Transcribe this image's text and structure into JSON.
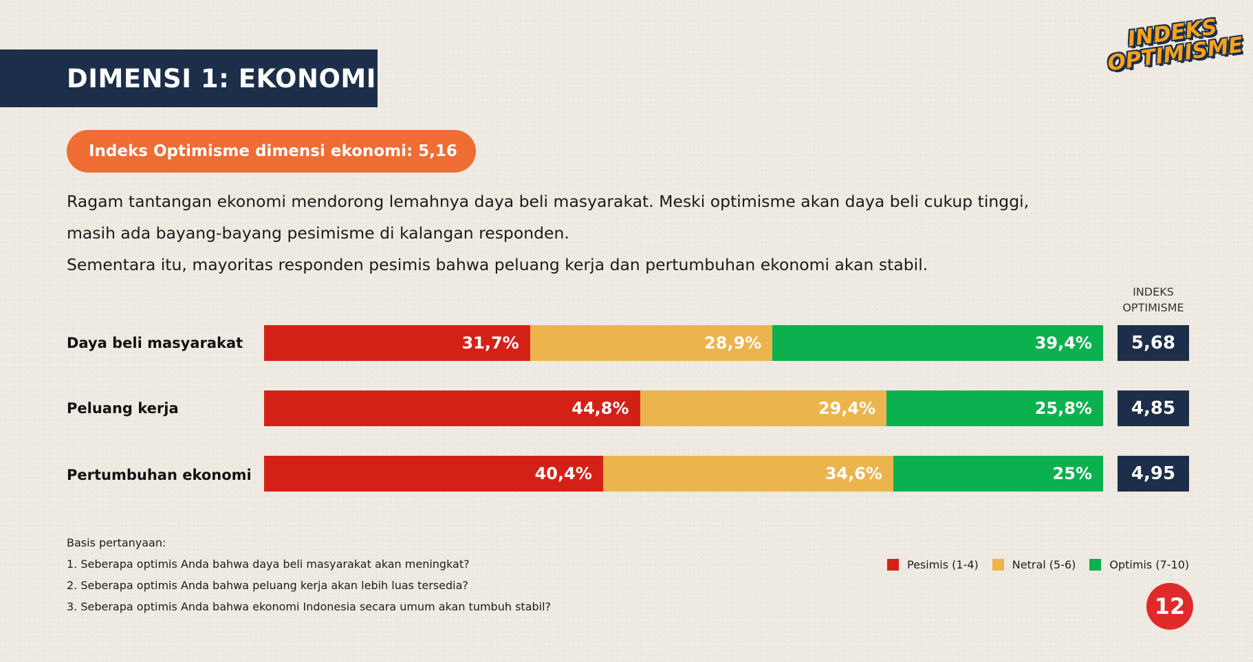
{
  "header": {
    "title": "DIMENSI 1: EKONOMI",
    "logo_line1": "INDEKS",
    "logo_line2": "OPTIMISME"
  },
  "pill": {
    "text": "Indeks Optimisme dimensi ekonomi: 5,16"
  },
  "description": {
    "line1": "Ragam tantangan ekonomi mendorong lemahnya daya beli masyarakat. Meski optimisme akan daya beli cukup tinggi,",
    "line2": "masih ada bayang-bayang pesimisme di kalangan responden.",
    "line3": "Sementara itu, mayoritas responden pesimis bahwa peluang kerja dan pertumbuhan ekonomi akan stabil."
  },
  "index_header": {
    "line1": "INDEKS",
    "line2": "OPTIMISME"
  },
  "colors": {
    "pesimis": "#d42118",
    "netral": "#ebb44c",
    "optimis": "#0bb14f",
    "navy": "#1c2e4a",
    "orange": "#ef6c35"
  },
  "chart_data": {
    "type": "bar",
    "orientation": "horizontal",
    "stacked": true,
    "percent": true,
    "categories": [
      "Daya beli masyarakat",
      "Peluang kerja",
      "Pertumbuhan ekonomi"
    ],
    "series": [
      {
        "name": "Pesimis (1-4)",
        "values": [
          31.7,
          44.8,
          40.4
        ],
        "labels": [
          "31,7%",
          "44,8%",
          "40,4%"
        ]
      },
      {
        "name": "Netral (5-6)",
        "values": [
          28.9,
          29.4,
          34.6
        ],
        "labels": [
          "28,9%",
          "29,4%",
          "34,6%"
        ]
      },
      {
        "name": "Optimis (7-10)",
        "values": [
          39.4,
          25.8,
          25
        ],
        "labels": [
          "39,4%",
          "25,8%",
          "25%"
        ]
      }
    ],
    "index": [
      "5,68",
      "4,85",
      "4,95"
    ],
    "legend_position": "bottom-right"
  },
  "basis": {
    "title": "Basis pertanyaan:",
    "q1": "1. Seberapa optimis Anda bahwa daya beli masyarakat akan meningkat?",
    "q2": "2. Seberapa optimis Anda bahwa peluang kerja akan lebih luas tersedia?",
    "q3": "3. Seberapa optimis Anda bahwa ekonomi Indonesia secara umum akan tumbuh stabil?"
  },
  "page_number": "12"
}
